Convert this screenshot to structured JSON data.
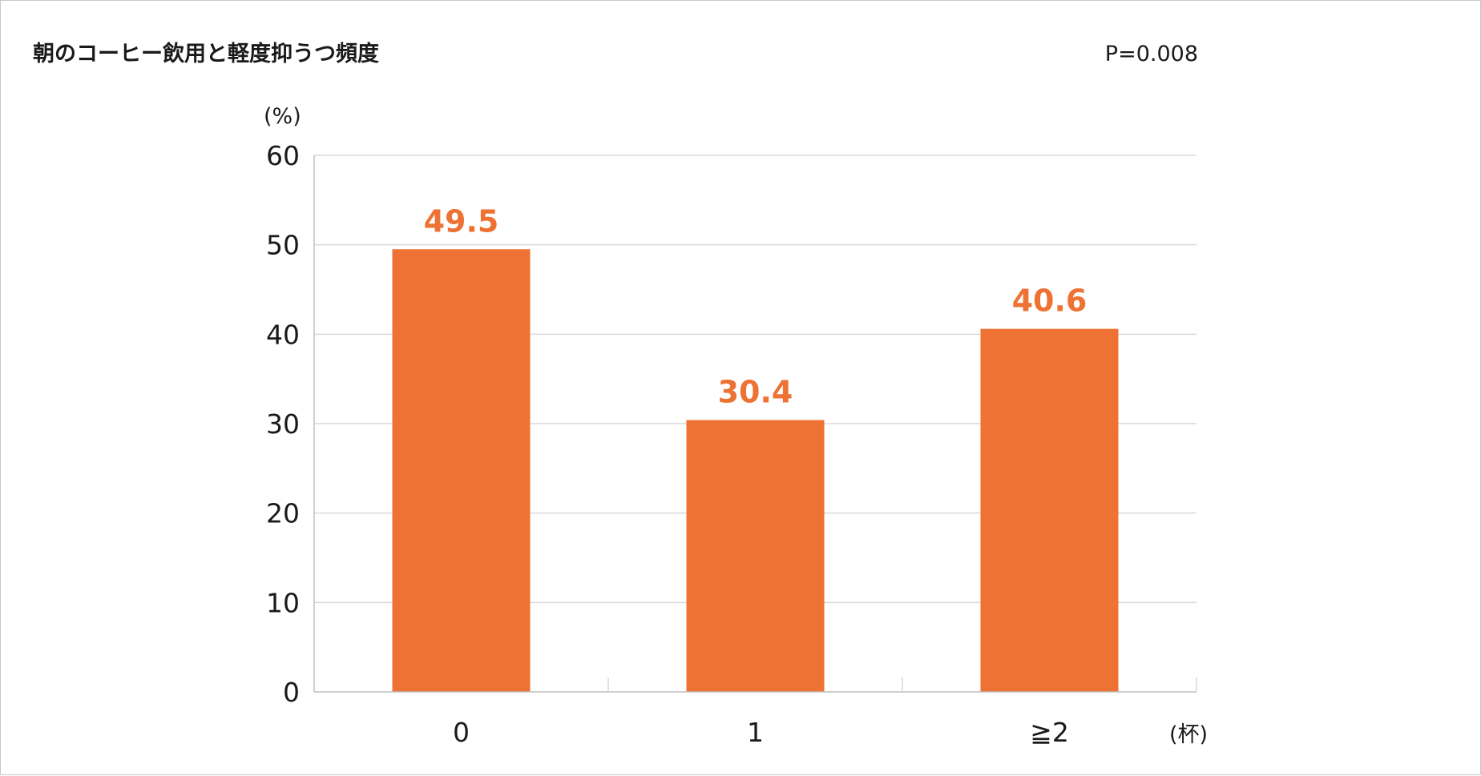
{
  "colors": {
    "bar": "#ED7233",
    "label": "#ED7233",
    "grid": "#d9d9d9",
    "axis": "#bfbfbf"
  },
  "chart_data": {
    "type": "bar",
    "title": "朝のコーヒー飲用と軽度抑うつ頻度",
    "annotation": "P=0.008",
    "ylabel": "(%)",
    "xlabel": "(杯)",
    "categories": [
      "0",
      "1",
      "≧2"
    ],
    "values": [
      49.5,
      30.4,
      40.6
    ],
    "data_labels": [
      "49.5",
      "30.4",
      "40.6"
    ],
    "ylim": [
      0,
      60
    ],
    "yticks": [
      "0",
      "10",
      "20",
      "30",
      "40",
      "50",
      "60"
    ],
    "grid": true,
    "legend": "none"
  }
}
